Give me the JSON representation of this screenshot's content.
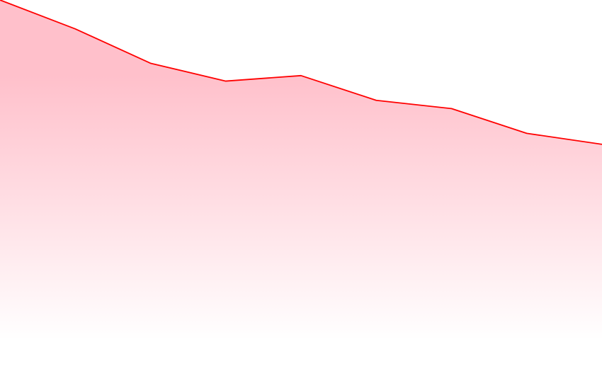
{
  "chart_data": {
    "type": "area",
    "x": [
      0,
      1,
      2,
      3,
      4,
      5,
      6,
      7,
      8
    ],
    "values": [
      100,
      79,
      54,
      41,
      45,
      27,
      21,
      3,
      -5
    ],
    "ylim": [
      -175,
      100
    ],
    "grid": false,
    "axes_visible": false,
    "line_color": "#ff0000",
    "fill_top_color": "#ffc0cb",
    "fill_bottom_color": "#ffffff"
  }
}
